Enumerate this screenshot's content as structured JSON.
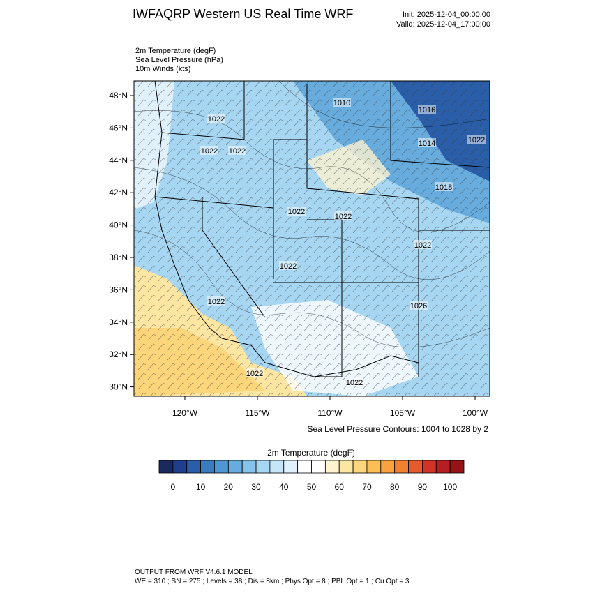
{
  "header": {
    "title": "IWFAQRP Western US Real Time WRF",
    "init": "Init: 2025-12-04_00:00:00",
    "valid": "Valid: 2025-12-04_17:00:00"
  },
  "fields": [
    "2m Temperature   (degF)",
    "Sea Level Pressure   (hPa)",
    "10m Winds   (kts)"
  ],
  "map": {
    "lat_labels": [
      "48°N",
      "46°N",
      "44°N",
      "42°N",
      "40°N",
      "38°N",
      "36°N",
      "34°N",
      "32°N",
      "30°N"
    ],
    "lon_labels": [
      "120°W",
      "115°W",
      "110°W",
      "105°W",
      "100°W"
    ],
    "pressure_labels": [
      "1010",
      "1016",
      "1022",
      "1022",
      "1022",
      "1014",
      "1022",
      "1018",
      "1022",
      "1022",
      "1022",
      "1022",
      "1026",
      "1022",
      "1022",
      "1022"
    ],
    "contour_note": "Sea Level Pressure Contours: 1004 to 1028 by 2"
  },
  "colorbar": {
    "title": "2m Temperature  (degF)",
    "ticks": [
      0,
      10,
      20,
      30,
      40,
      50,
      60,
      70,
      80,
      90,
      100
    ],
    "colors": [
      "#1a2a5e",
      "#1f3f8c",
      "#2b5ea8",
      "#3a7cc0",
      "#4f97d2",
      "#68acdd",
      "#86c3ea",
      "#a6d6f2",
      "#c6e6f8",
      "#e0f1fb",
      "#ffffff",
      "#ffffff",
      "#fdf3d0",
      "#fde5a2",
      "#fdd57a",
      "#fcbf56",
      "#f9a23f",
      "#f2812f",
      "#e65a2b",
      "#d13427",
      "#b71e22",
      "#961416"
    ]
  },
  "footer": {
    "line1": "OUTPUT FROM WRF V4.6.1 MODEL",
    "line2": "WE = 310 ; SN = 275 ; Levels = 38 ; Dis = 8km ; Phys Opt = 8 ; PBL Opt = 1 ; Cu Opt = 3"
  }
}
